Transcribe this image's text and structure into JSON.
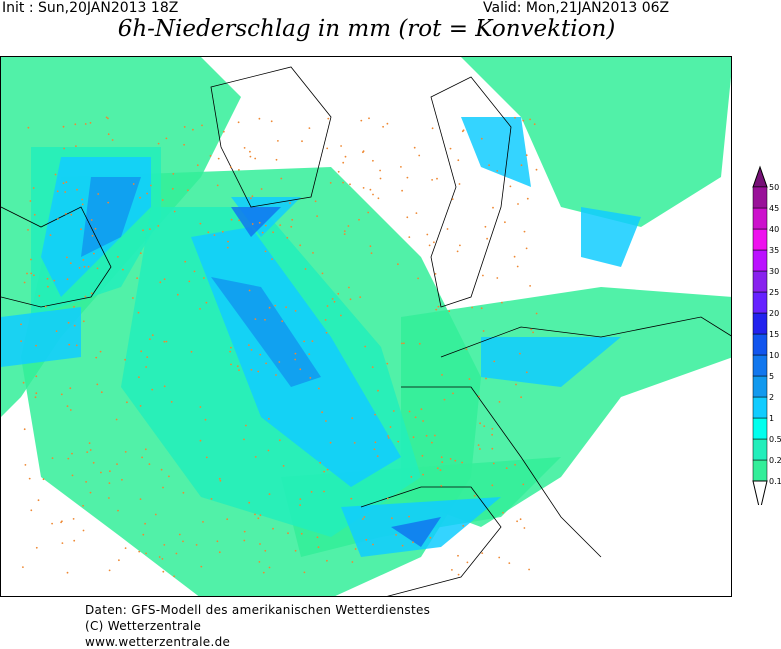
{
  "header": {
    "init": "Init : Sun,20JAN2013 18Z",
    "valid": "Valid: Mon,21JAN2013 06Z",
    "title": "6h-Niederschlag in mm (rot = Konvektion)"
  },
  "colorbar": {
    "labels": [
      "0.1",
      "0.2",
      "0.5",
      "1",
      "2",
      "5",
      "10",
      "15",
      "20",
      "25",
      "30",
      "35",
      "40",
      "45",
      "50"
    ],
    "colors": [
      "#33ee99",
      "#22eebb",
      "#00ffee",
      "#11ccff",
      "#1199ee",
      "#1177ee",
      "#1155ee",
      "#2222ee",
      "#6622ff",
      "#8822ee",
      "#bb11ff",
      "#ee11ee",
      "#cc11cc",
      "#991199"
    ],
    "top_color": "#771177"
  },
  "map": {
    "convection_color": "#ee8833"
  },
  "footer": [
    "Daten: GFS-Modell des amerikanischen Wetterdienstes",
    "(C) Wetterzentrale",
    "www.wetterzentrale.de"
  ]
}
